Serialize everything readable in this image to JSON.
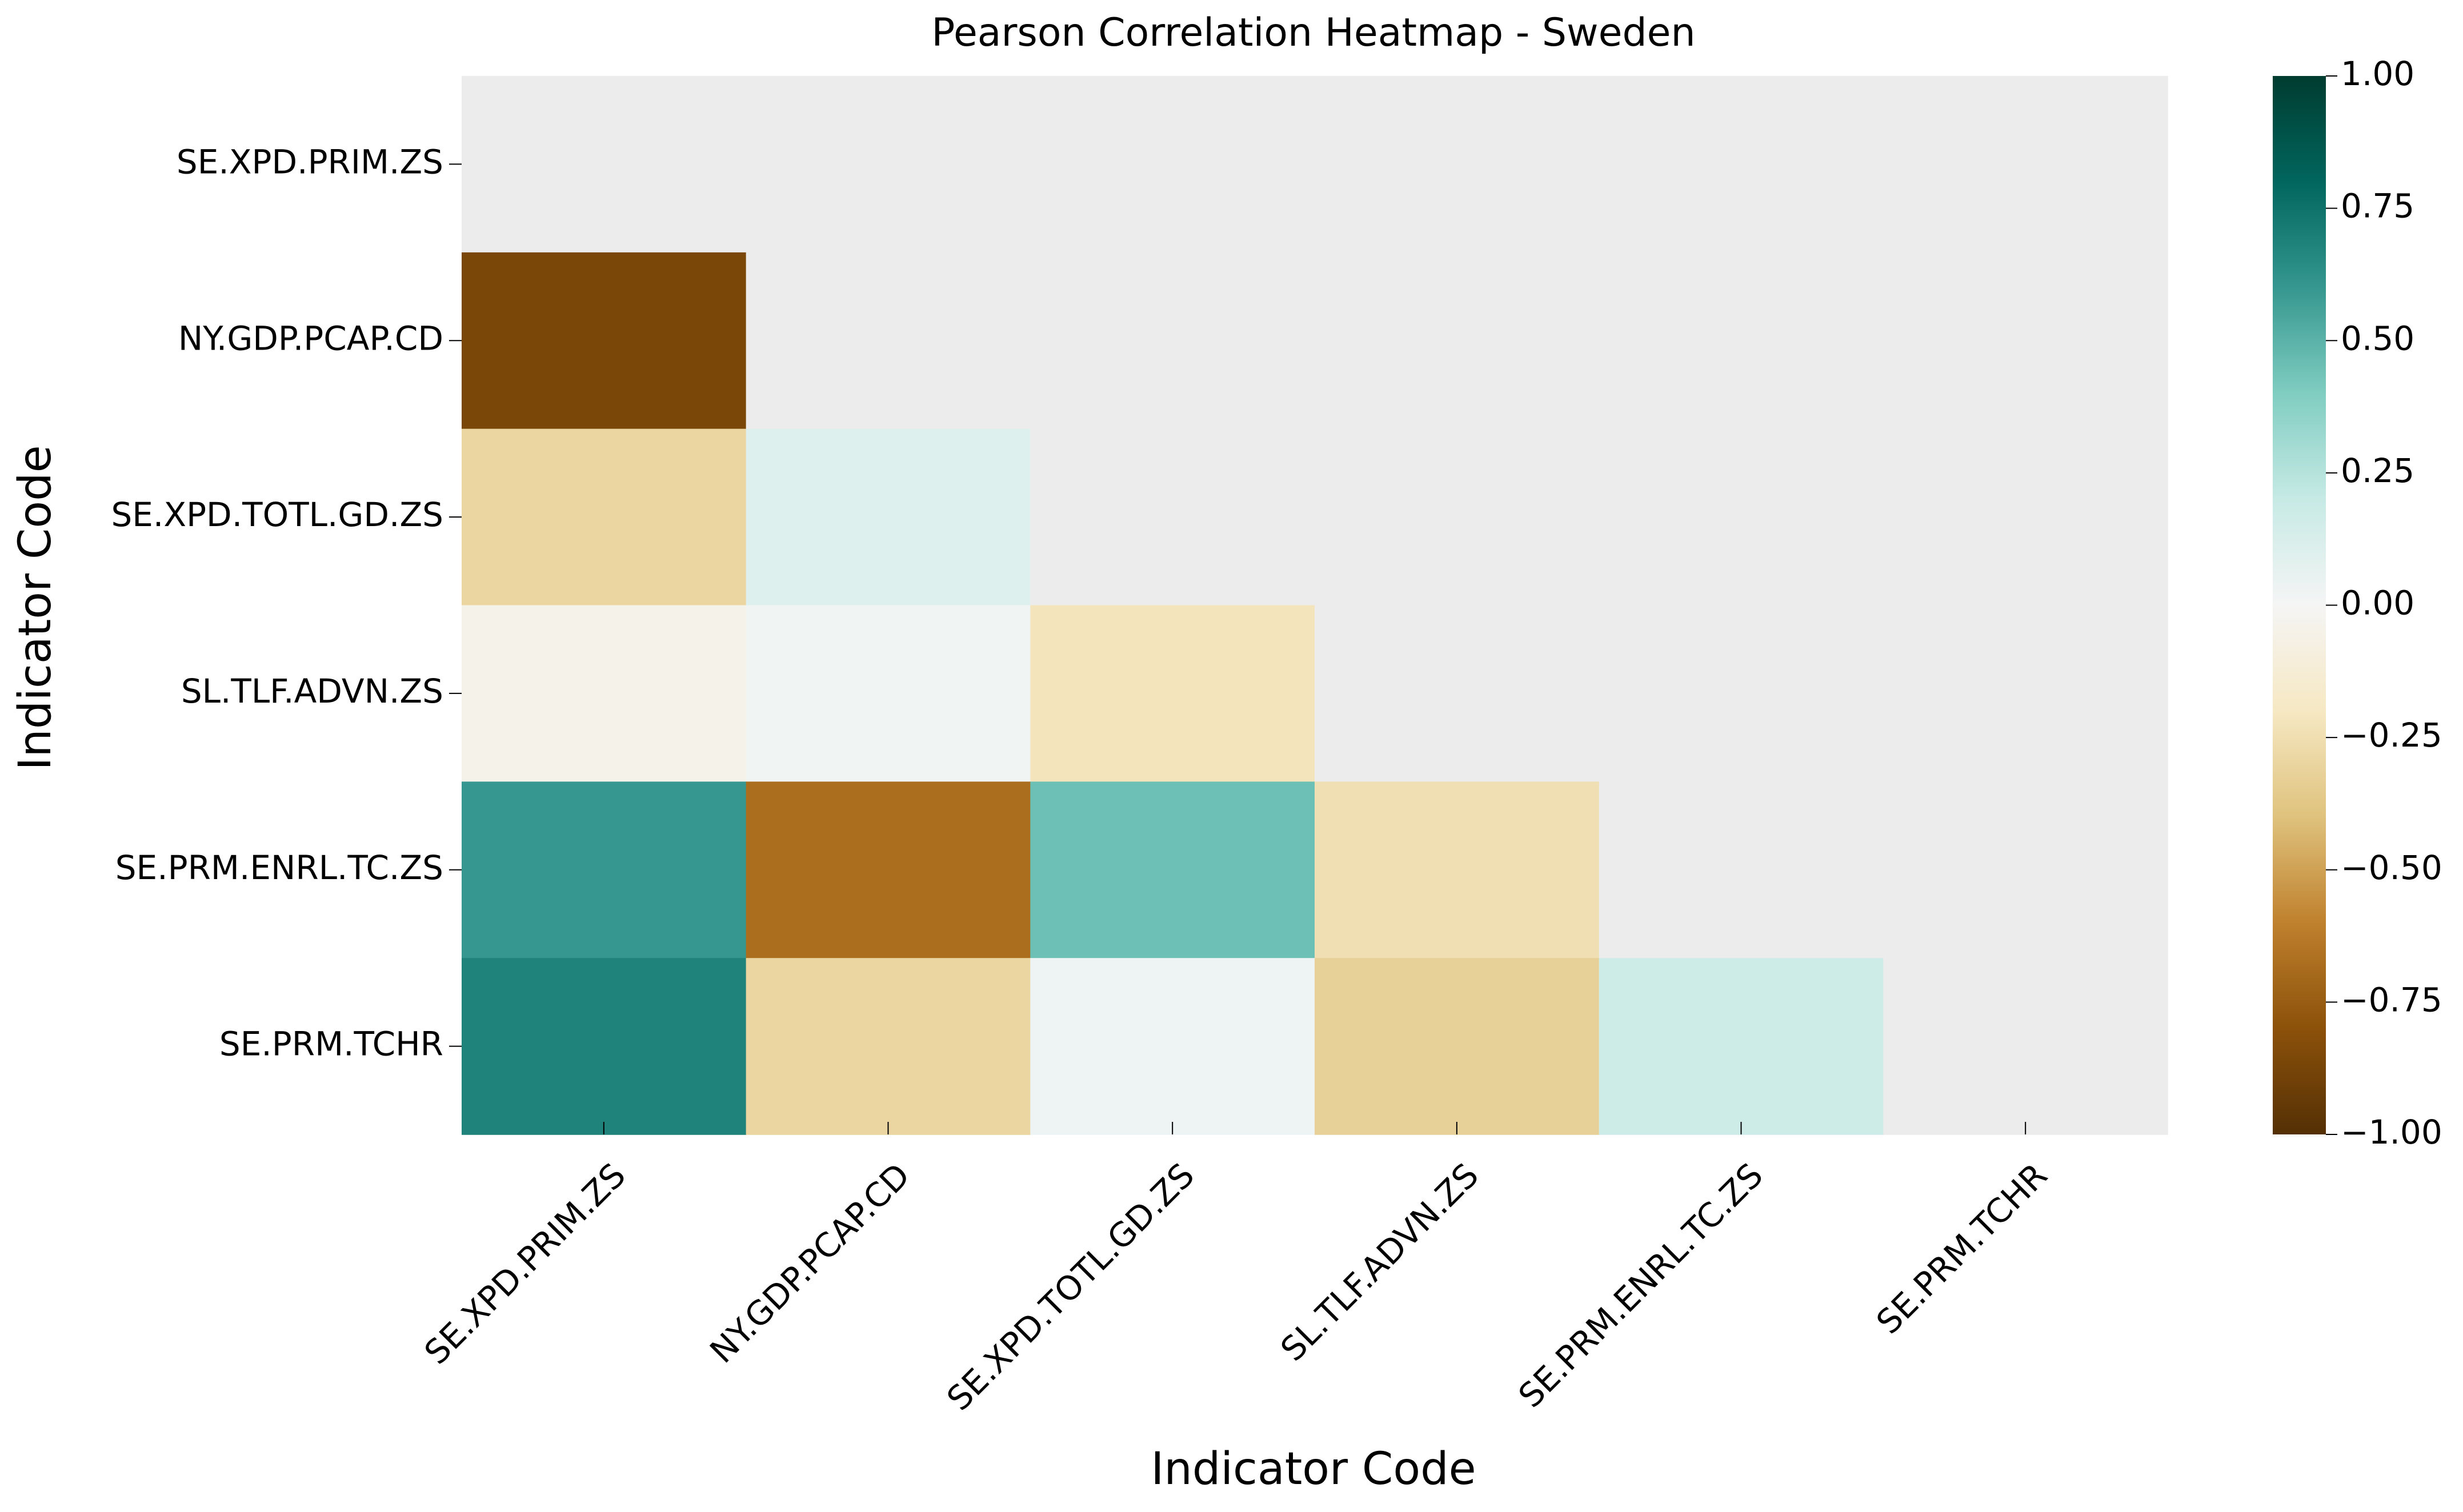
{
  "chart_data": {
    "type": "heatmap",
    "title": "Pearson Correlation Heatmap - Sweden",
    "xlabel": "Indicator Code",
    "ylabel": "Indicator Code",
    "rows": [
      "SE.XPD.PRIM.ZS",
      "NY.GDP.PCAP.CD",
      "SE.XPD.TOTL.GD.ZS",
      "SL.TLF.ADVN.ZS",
      "SE.PRM.ENRL.TC.ZS",
      "SE.PRM.TCHR"
    ],
    "columns": [
      "SE.XPD.PRIM.ZS",
      "NY.GDP.PCAP.CD",
      "SE.XPD.TOTL.GD.ZS",
      "SL.TLF.ADVN.ZS",
      "SE.PRM.ENRL.TC.ZS",
      "SE.PRM.TCHR"
    ],
    "values": [
      [
        null,
        null,
        null,
        null,
        null,
        null
      ],
      [
        -0.86,
        null,
        null,
        null,
        null,
        null
      ],
      [
        -0.3,
        0.1,
        null,
        null,
        null,
        null
      ],
      [
        -0.05,
        0.02,
        -0.22,
        null,
        null,
        null
      ],
      [
        0.6,
        -0.68,
        0.45,
        -0.25,
        null,
        null
      ],
      [
        0.68,
        -0.3,
        0.03,
        -0.32,
        0.17,
        null
      ]
    ],
    "mask": "upper-triangle including diagonal",
    "masked_color": "#ececec",
    "colormap": "BrBG",
    "vmin": -1.0,
    "vmax": 1.0,
    "colorbar_ticks": [
      "1.00",
      "0.75",
      "0.50",
      "0.25",
      "0.00",
      "−0.25",
      "−0.50",
      "−0.75",
      "−1.00"
    ],
    "colorbar_tick_values": [
      1.0,
      0.75,
      0.5,
      0.25,
      0.0,
      -0.25,
      -0.5,
      -0.75,
      -1.0
    ],
    "colorbar_position": "right",
    "grid": false
  }
}
